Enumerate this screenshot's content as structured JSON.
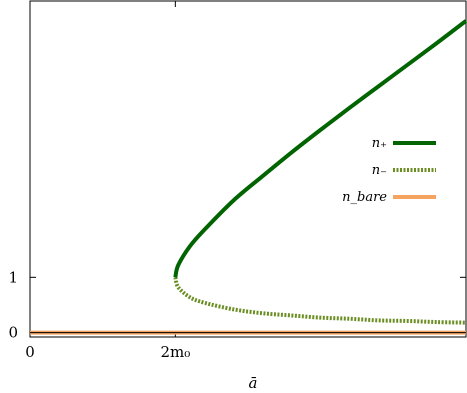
{
  "chart_data": {
    "type": "line",
    "title": "",
    "xlabel": "ā",
    "ylabel": "",
    "xlim": [
      0,
      3.0
    ],
    "ylim": [
      -0.08,
      6.0
    ],
    "x_ticks": [
      {
        "value": 0,
        "label": "0"
      },
      {
        "value": 1,
        "label": "2m₀"
      }
    ],
    "y_ticks": [
      {
        "value": 0,
        "label": "0"
      },
      {
        "value": 1,
        "label": "1"
      }
    ],
    "grid": false,
    "legend_position": "right",
    "series": [
      {
        "name": "n₊",
        "color": "#006400",
        "style": "solid",
        "x": [
          1.0,
          1.02,
          1.1,
          1.2,
          1.4,
          1.6,
          1.8,
          2.0,
          2.2,
          2.4,
          2.6,
          2.8,
          3.0
        ],
        "y": [
          1.0,
          1.22,
          1.56,
          1.86,
          2.39,
          2.83,
          3.26,
          3.67,
          4.07,
          4.46,
          4.85,
          5.24,
          5.64
        ]
      },
      {
        "name": "n₋",
        "color": "#6b8e23",
        "style": "dotted",
        "x": [
          1.0,
          1.02,
          1.1,
          1.2,
          1.4,
          1.6,
          1.8,
          2.0,
          2.2,
          2.4,
          2.6,
          2.8,
          3.0
        ],
        "y": [
          1.0,
          0.82,
          0.64,
          0.54,
          0.42,
          0.35,
          0.31,
          0.27,
          0.25,
          0.22,
          0.21,
          0.19,
          0.18
        ]
      },
      {
        "name": "n_bare",
        "color": "#f4a460",
        "style": "solid",
        "x": [
          0,
          3.0
        ],
        "y": [
          0,
          0
        ]
      }
    ]
  }
}
